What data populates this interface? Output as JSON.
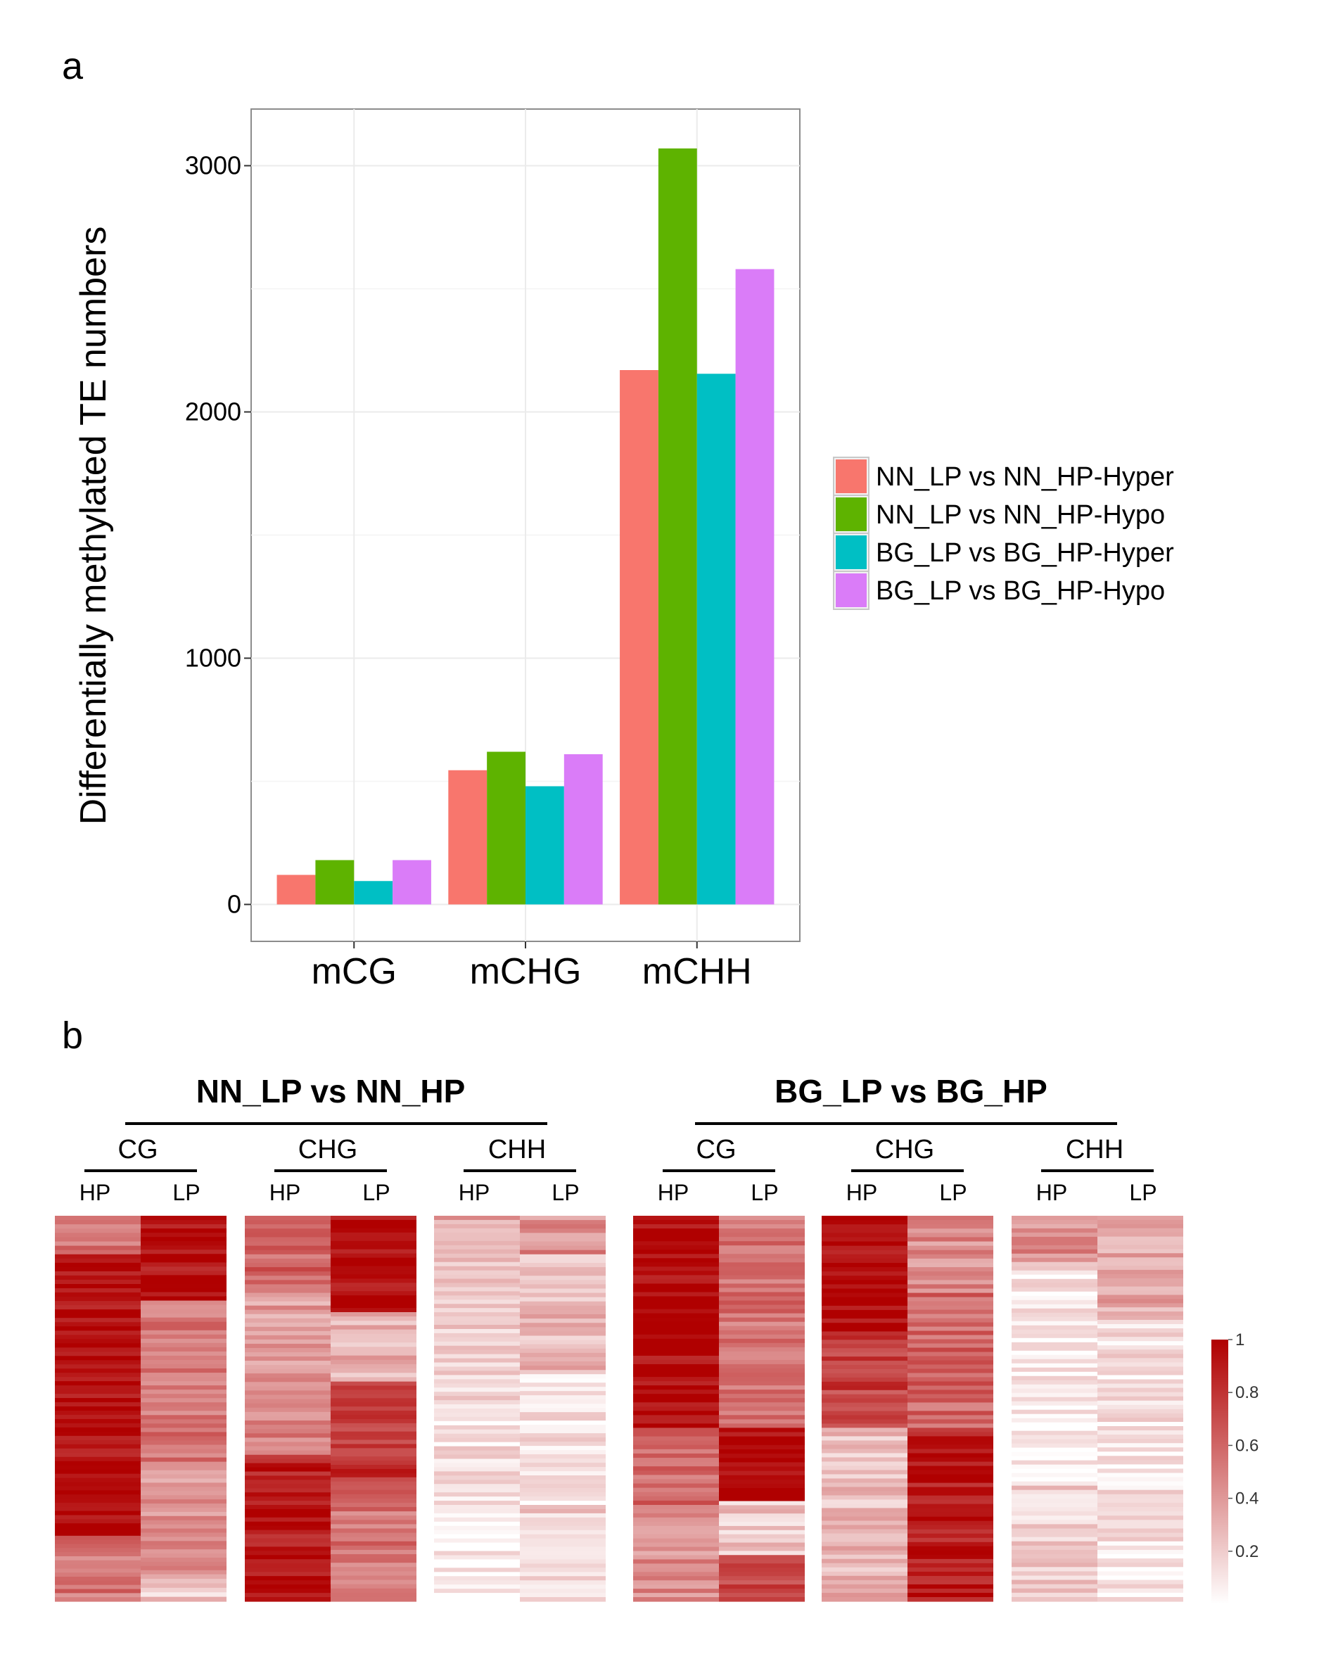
{
  "panel_a": {
    "label": "a",
    "chart_data": {
      "type": "bar",
      "title": "",
      "xlabel": "",
      "ylabel": "Differentially methylated TE numbers",
      "categories": [
        "mCG",
        "mCHG",
        "mCHH"
      ],
      "series": [
        {
          "name": "NN_LP vs NN_HP-Hyper",
          "color": "#F8766D",
          "values": [
            120,
            545,
            2170
          ]
        },
        {
          "name": "NN_LP vs NN_HP-Hypo",
          "color": "#5EB300",
          "values": [
            180,
            620,
            3070
          ]
        },
        {
          "name": "BG_LP vs BG_HP-Hyper",
          "color": "#00BFC4",
          "values": [
            95,
            480,
            2155
          ]
        },
        {
          "name": "BG_LP vs BG_HP-Hypo",
          "color": "#DA7CF8",
          "values": [
            180,
            610,
            2580
          ]
        }
      ],
      "yticks": [
        0,
        1000,
        2000,
        3000
      ],
      "ytick_labels": [
        "0",
        "1000",
        "2000",
        "3000"
      ],
      "ylim": [
        -150,
        3230
      ],
      "grid": true,
      "legend_position": "right"
    }
  },
  "panel_b": {
    "label": "b",
    "colorbar": {
      "low_color": "#FFFFFF",
      "high_color": "#B00000",
      "ticks": [
        "1",
        "0.8",
        "0.6",
        "0.4",
        "0.2"
      ]
    },
    "groups": [
      {
        "title": "NN_LP vs NN_HP",
        "contexts": [
          {
            "name": "CG",
            "columns": [
              "HP",
              "LP"
            ],
            "segments": [
              [
                [
                  0.1,
                  0.55
                ],
                [
                  0.32,
                  0.95
                ],
                [
                  0.68,
                  0.95
                ],
                [
                  0.83,
                  0.97
                ],
                [
                  1.0,
                  0.55
                ]
              ],
              [
                [
                  0.22,
                  0.95
                ],
                [
                  0.66,
                  0.55
                ],
                [
                  0.93,
                  0.42
                ],
                [
                  1.0,
                  0.2
                ]
              ]
            ]
          },
          {
            "name": "CHG",
            "columns": [
              "HP",
              "LP"
            ],
            "segments": [
              [
                [
                  0.2,
                  0.6
                ],
                [
                  0.42,
                  0.38
                ],
                [
                  0.62,
                  0.5
                ],
                [
                  0.88,
                  0.9
                ],
                [
                  1.0,
                  0.92
                ]
              ],
              [
                [
                  0.25,
                  0.95
                ],
                [
                  0.43,
                  0.3
                ],
                [
                  0.7,
                  0.8
                ],
                [
                  1.0,
                  0.55
                ]
              ]
            ]
          },
          {
            "name": "CHH",
            "columns": [
              "HP",
              "LP"
            ],
            "segments": [
              [
                [
                  0.12,
                  0.35
                ],
                [
                  0.5,
                  0.2
                ],
                [
                  0.75,
                  0.12
                ],
                [
                  1.0,
                  0.06
                ]
              ],
              [
                [
                  0.1,
                  0.45
                ],
                [
                  0.4,
                  0.28
                ],
                [
                  0.75,
                  0.1
                ],
                [
                  1.0,
                  0.18
                ]
              ]
            ]
          }
        ]
      },
      {
        "title": "BG_LP vs BG_HP",
        "contexts": [
          {
            "name": "CG",
            "columns": [
              "HP",
              "LP"
            ],
            "segments": [
              [
                [
                  0.55,
                  0.97
                ],
                [
                  0.75,
                  0.6
                ],
                [
                  1.0,
                  0.45
                ]
              ],
              [
                [
                  0.55,
                  0.55
                ],
                [
                  0.74,
                  0.97
                ],
                [
                  0.88,
                  0.22
                ],
                [
                  1.0,
                  0.75
                ]
              ]
            ]
          },
          {
            "name": "CHG",
            "columns": [
              "HP",
              "LP"
            ],
            "segments": [
              [
                [
                  0.3,
                  0.97
                ],
                [
                  0.55,
                  0.75
                ],
                [
                  0.78,
                  0.25
                ],
                [
                  1.0,
                  0.3
                ]
              ],
              [
                [
                  0.2,
                  0.45
                ],
                [
                  0.55,
                  0.6
                ],
                [
                  1.0,
                  0.9
                ]
              ]
            ]
          },
          {
            "name": "CHH",
            "columns": [
              "HP",
              "LP"
            ],
            "segments": [
              [
                [
                  0.12,
                  0.45
                ],
                [
                  0.35,
                  0.1
                ],
                [
                  0.7,
                  0.08
                ],
                [
                  1.0,
                  0.18
                ]
              ],
              [
                [
                  0.27,
                  0.35
                ],
                [
                  0.7,
                  0.12
                ],
                [
                  1.0,
                  0.1
                ]
              ]
            ]
          }
        ]
      }
    ]
  }
}
